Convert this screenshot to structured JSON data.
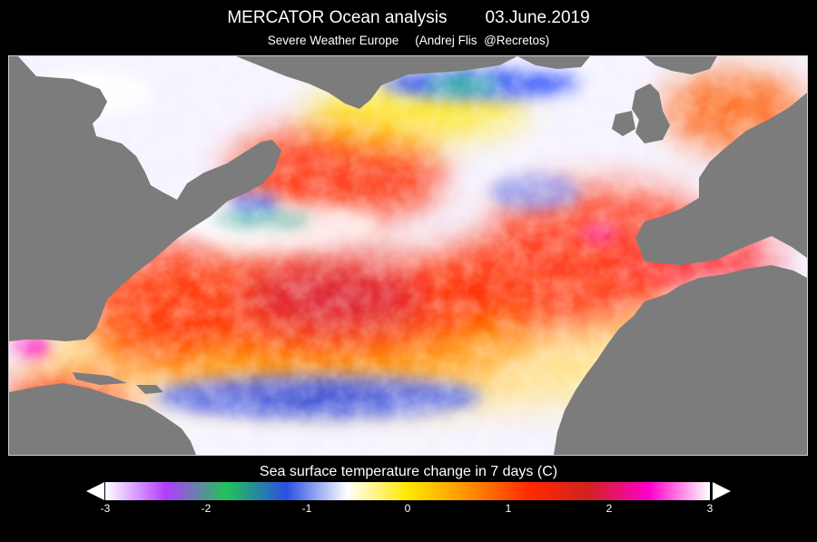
{
  "header": {
    "title": "MERCATOR Ocean analysis",
    "date": "03.June.2019",
    "source": "Severe Weather Europe",
    "credit": "(Andrej Flis  @Recretos)"
  },
  "colorbar": {
    "title": "Sea surface temperature change in 7 days (C)",
    "min": -3,
    "max": 3,
    "ticks": [
      "-3",
      "-2",
      "-1",
      "0",
      "1",
      "2",
      "3"
    ],
    "stops": [
      "#ffffff",
      "#b23cff",
      "#22c35a",
      "#2b4fe0",
      "#ffffff",
      "#ffe800",
      "#ff9000",
      "#ff2a00",
      "#d42020",
      "#ff00cc",
      "#ffffff"
    ]
  },
  "map": {
    "land_color": "#7c7c7c",
    "ocean_background": "#f6f3ff",
    "regions": [
      {
        "name": "north-america",
        "type": "land"
      },
      {
        "name": "greenland",
        "type": "land"
      },
      {
        "name": "iceland",
        "type": "land"
      },
      {
        "name": "british-isles",
        "type": "land"
      },
      {
        "name": "europe",
        "type": "land"
      },
      {
        "name": "africa",
        "type": "land"
      },
      {
        "name": "south-america",
        "type": "land"
      },
      {
        "name": "caribbean-islands",
        "type": "land"
      }
    ]
  }
}
